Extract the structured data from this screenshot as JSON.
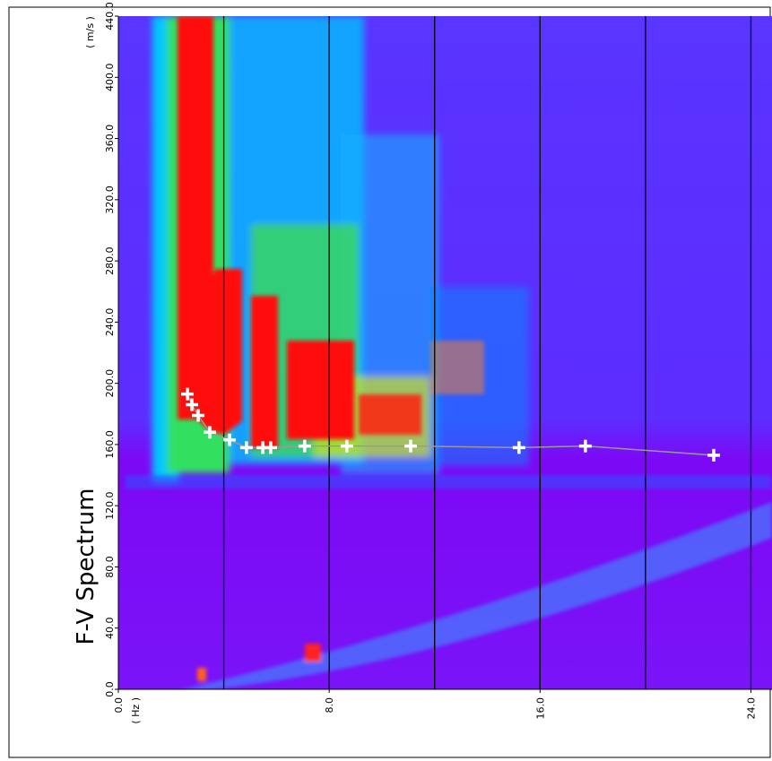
{
  "chart_data": {
    "type": "scatter",
    "title": "F-V Spectrum",
    "x_label": "( Hz )",
    "y_label": "( m/s )",
    "xlim": [
      0,
      24.8
    ],
    "ylim": [
      0,
      440
    ],
    "xticks": [
      {
        "value": 0,
        "label": "0.0"
      },
      {
        "value": 8,
        "label": "8.0"
      },
      {
        "value": 16,
        "label": "16.0"
      },
      {
        "value": 24,
        "label": "24.0"
      }
    ],
    "yticks": [
      {
        "value": 0,
        "label": "0.0"
      },
      {
        "value": 40,
        "label": "40.0"
      },
      {
        "value": 80,
        "label": "80.0"
      },
      {
        "value": 120,
        "label": "120.0"
      },
      {
        "value": 160,
        "label": "160.0"
      },
      {
        "value": 200,
        "label": "200.0"
      },
      {
        "value": 240,
        "label": "240.0"
      },
      {
        "value": 280,
        "label": "280.0"
      },
      {
        "value": 320,
        "label": "320.0"
      },
      {
        "value": 360,
        "label": "360.0"
      },
      {
        "value": 400,
        "label": "400.0"
      },
      {
        "value": 440,
        "label": "440.0"
      }
    ],
    "xgrid": [
      4,
      8,
      12,
      16,
      20,
      24
    ],
    "series": [
      {
        "color": "#9a9a9a",
        "marker_color": "#ffffff",
        "x": [
          2.62,
          2.79,
          3.03,
          3.47,
          4.22,
          4.86,
          5.48,
          5.78,
          7.07,
          8.67,
          11.09,
          15.2,
          17.72,
          22.59
        ],
        "values": [
          193,
          186,
          179,
          168,
          163,
          158,
          158,
          158,
          159,
          159,
          159,
          158,
          159,
          153
        ]
      }
    ]
  }
}
